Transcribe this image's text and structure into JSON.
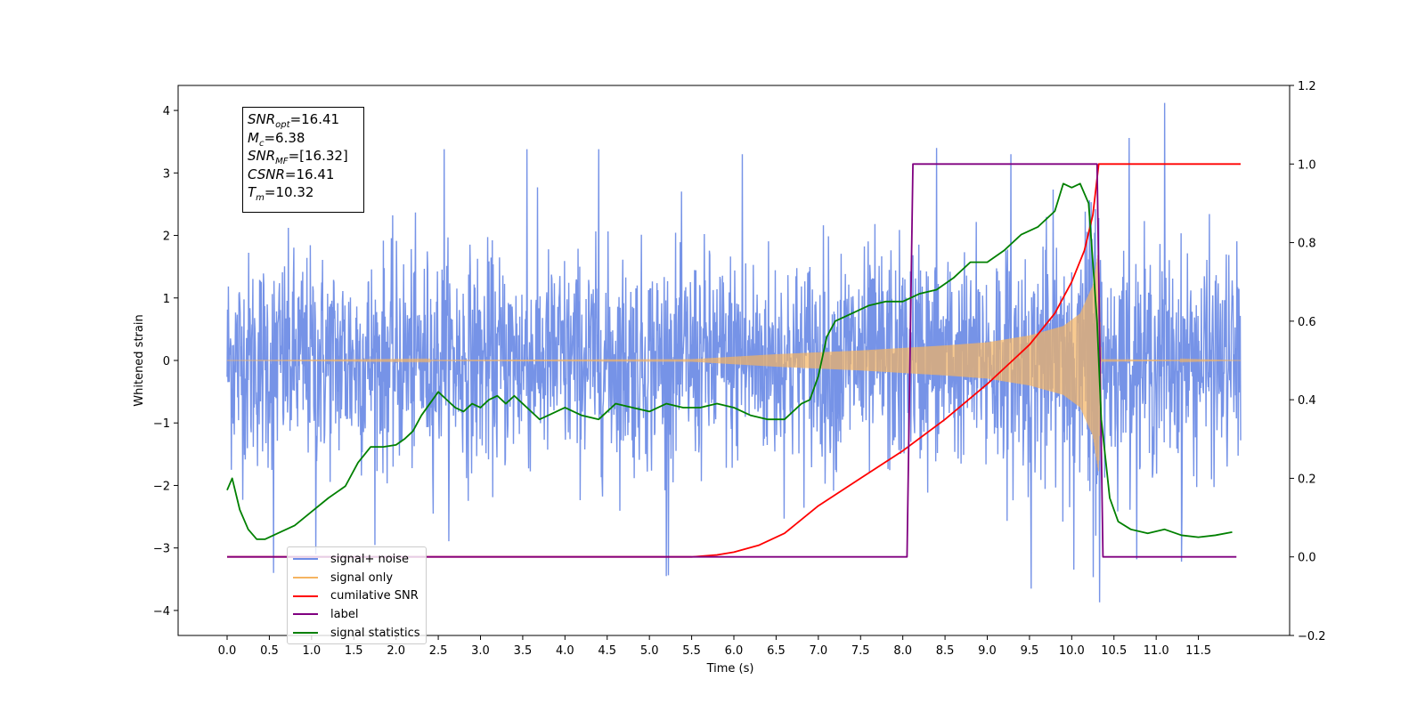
{
  "chart_data": {
    "type": "line",
    "xlabel": "Time (s)",
    "ylabel": "Whitened strain",
    "xlim": [
      -0.58,
      12.58
    ],
    "ylim": [
      -4.4,
      4.4
    ],
    "ylim_right": [
      -0.2,
      1.2
    ],
    "x_ticks": [
      0.0,
      0.5,
      1.0,
      1.5,
      2.0,
      2.5,
      3.0,
      3.5,
      4.0,
      4.5,
      5.0,
      5.5,
      6.0,
      6.5,
      7.0,
      7.5,
      8.0,
      8.5,
      9.0,
      9.5,
      10.0,
      10.5,
      11.0,
      11.5
    ],
    "x_tick_labels": [
      "0.0",
      "0.5",
      "1.0",
      "1.5",
      "2.0",
      "2.5",
      "3.0",
      "3.5",
      "4.0",
      "4.5",
      "5.0",
      "5.5",
      "6.0",
      "6.5",
      "7.0",
      "7.5",
      "8.0",
      "8.5",
      "9.0",
      "9.5",
      "10.0",
      "10.5",
      "11.0",
      "11.5"
    ],
    "y_ticks_left": [
      4,
      3,
      2,
      1,
      0,
      -1,
      -2,
      -3,
      -4
    ],
    "y_tick_labels_left": [
      "4",
      "3",
      "2",
      "1",
      "0",
      "−1",
      "−2",
      "−3",
      "−4"
    ],
    "y_ticks_right": [
      1.2,
      1.0,
      0.8,
      0.6,
      0.4,
      0.2,
      0.0,
      -0.2
    ],
    "y_tick_labels_right": [
      "1.2",
      "1.0",
      "0.8",
      "0.6",
      "0.4",
      "0.2",
      "0.0",
      "−0.2"
    ],
    "grid": false,
    "legend_position": "lower-left",
    "series": [
      {
        "name": "signal+ noise",
        "axis": "left",
        "color": "#6f8de6",
        "t_start": 0.0,
        "t_end": 12.0,
        "noise_std": 0.85,
        "peak_points": [
          [
            0.55,
            -3.4
          ],
          [
            1.05,
            -3.1
          ],
          [
            2.57,
            3.38
          ],
          [
            3.55,
            3.38
          ],
          [
            4.4,
            3.38
          ],
          [
            5.2,
            -3.45
          ],
          [
            6.1,
            3.3
          ],
          [
            8.4,
            3.4
          ],
          [
            9.28,
            3.3
          ],
          [
            9.52,
            -3.65
          ],
          [
            10.33,
            -3.87
          ],
          [
            10.68,
            3.56
          ],
          [
            11.1,
            4.12
          ],
          [
            11.3,
            -3.22
          ]
        ]
      },
      {
        "name": "signal only",
        "axis": "left",
        "color": "#f5b461",
        "envelope": [
          [
            0.0,
            0.0
          ],
          [
            5.5,
            0.02
          ],
          [
            6.0,
            0.06
          ],
          [
            6.5,
            0.1
          ],
          [
            7.0,
            0.13
          ],
          [
            7.5,
            0.16
          ],
          [
            8.0,
            0.2
          ],
          [
            8.5,
            0.24
          ],
          [
            9.0,
            0.29
          ],
          [
            9.5,
            0.4
          ],
          [
            9.9,
            0.55
          ],
          [
            10.1,
            0.75
          ],
          [
            10.25,
            1.2
          ],
          [
            10.32,
            1.8
          ],
          [
            10.35,
            0.02
          ],
          [
            12.0,
            0.0
          ]
        ]
      },
      {
        "name": "cumilative SNR",
        "axis": "right",
        "color": "#ff0000",
        "x": [
          0.0,
          5.5,
          5.8,
          6.0,
          6.3,
          6.6,
          7.0,
          7.5,
          8.0,
          8.5,
          9.0,
          9.5,
          9.8,
          10.0,
          10.15,
          10.25,
          10.32,
          10.35,
          12.0
        ],
        "y": [
          0.0,
          0.0,
          0.005,
          0.012,
          0.03,
          0.06,
          0.13,
          0.2,
          0.27,
          0.35,
          0.44,
          0.54,
          0.62,
          0.7,
          0.78,
          0.87,
          1.0,
          1.0,
          1.0
        ]
      },
      {
        "name": "label",
        "axis": "right",
        "color": "#800080",
        "x": [
          0.0,
          8.05,
          8.12,
          10.3,
          10.37,
          11.95
        ],
        "y": [
          0.0,
          0.0,
          1.0,
          1.0,
          0.0,
          0.0
        ]
      },
      {
        "name": "signal statistics",
        "axis": "right",
        "color": "#008000",
        "x": [
          0.0,
          0.06,
          0.15,
          0.25,
          0.35,
          0.45,
          0.6,
          0.8,
          1.0,
          1.2,
          1.4,
          1.55,
          1.7,
          1.85,
          2.0,
          2.1,
          2.2,
          2.3,
          2.4,
          2.5,
          2.6,
          2.7,
          2.8,
          2.9,
          3.0,
          3.1,
          3.2,
          3.3,
          3.4,
          3.5,
          3.6,
          3.7,
          3.8,
          4.0,
          4.2,
          4.4,
          4.6,
          4.8,
          5.0,
          5.2,
          5.4,
          5.6,
          5.8,
          6.0,
          6.2,
          6.4,
          6.6,
          6.8,
          6.9,
          7.0,
          7.1,
          7.2,
          7.3,
          7.4,
          7.6,
          7.8,
          8.0,
          8.2,
          8.4,
          8.6,
          8.8,
          9.0,
          9.2,
          9.4,
          9.6,
          9.8,
          9.9,
          10.0,
          10.1,
          10.2,
          10.3,
          10.35,
          10.45,
          10.55,
          10.7,
          10.9,
          11.1,
          11.3,
          11.5,
          11.7,
          11.9
        ],
        "y": [
          0.17,
          0.2,
          0.12,
          0.07,
          0.045,
          0.045,
          0.06,
          0.08,
          0.115,
          0.15,
          0.18,
          0.24,
          0.28,
          0.28,
          0.285,
          0.3,
          0.32,
          0.36,
          0.39,
          0.42,
          0.4,
          0.38,
          0.37,
          0.39,
          0.38,
          0.4,
          0.41,
          0.39,
          0.41,
          0.39,
          0.37,
          0.35,
          0.36,
          0.38,
          0.36,
          0.35,
          0.39,
          0.38,
          0.37,
          0.39,
          0.38,
          0.38,
          0.39,
          0.38,
          0.36,
          0.35,
          0.35,
          0.39,
          0.4,
          0.46,
          0.56,
          0.6,
          0.61,
          0.62,
          0.64,
          0.65,
          0.65,
          0.67,
          0.68,
          0.71,
          0.75,
          0.75,
          0.78,
          0.82,
          0.84,
          0.88,
          0.95,
          0.94,
          0.95,
          0.9,
          0.6,
          0.35,
          0.15,
          0.09,
          0.07,
          0.06,
          0.07,
          0.055,
          0.05,
          0.055,
          0.063
        ]
      }
    ]
  },
  "info_box": {
    "lines": [
      {
        "var": "SNR",
        "sub": "opt",
        "value": "=16.41"
      },
      {
        "var": "M",
        "sub": "c",
        "value": "=6.38"
      },
      {
        "var": "SNR",
        "sub": "MF",
        "value": "=[16.32]"
      },
      {
        "var": "CSNR",
        "sub": "",
        "value": "=16.41"
      },
      {
        "var": "T",
        "sub": "m",
        "value": "=10.32"
      }
    ]
  },
  "legend": {
    "items": [
      {
        "label": "signal+ noise",
        "color": "#6f8de6"
      },
      {
        "label": "signal only",
        "color": "#f5b461"
      },
      {
        "label": "cumilative SNR",
        "color": "#ff0000"
      },
      {
        "label": "label",
        "color": "#800080"
      },
      {
        "label": "signal statistics",
        "color": "#008000"
      }
    ],
    "overlapped_text": "signal only"
  }
}
